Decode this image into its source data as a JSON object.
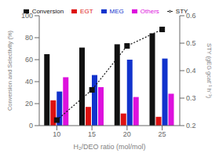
{
  "chart_data": {
    "type": "bar",
    "categories": [
      "10",
      "15",
      "20",
      "25"
    ],
    "xlabel": "H₂/DEO ratio (mol/mol)",
    "ylabel": "Conversion and Selectivity (%)",
    "y2label": "STY (gEG gcat⁻¹ h⁻¹)",
    "ylim": [
      0,
      100
    ],
    "yticks": [
      0,
      20,
      40,
      60,
      80,
      100
    ],
    "y2lim": [
      0.2,
      0.6
    ],
    "y2ticks": [
      0.2,
      0.3,
      0.4,
      0.5,
      0.6
    ],
    "legend": "top",
    "grid": false,
    "series": [
      {
        "name": "Conversion",
        "type": "bar",
        "color": "#111111",
        "values": [
          65,
          71,
          74,
          84
        ]
      },
      {
        "name": "EGT",
        "type": "bar",
        "color": "#dd1111",
        "values": [
          23,
          17,
          11,
          8
        ]
      },
      {
        "name": "MEG",
        "type": "bar",
        "color": "#1133cc",
        "values": [
          31,
          46,
          60,
          61
        ]
      },
      {
        "name": "Others",
        "type": "bar",
        "color": "#dd11dd",
        "values": [
          44,
          35,
          26,
          29
        ]
      },
      {
        "name": "STY",
        "type": "line",
        "axis": "y2",
        "color": "#111111",
        "marker": "square",
        "line_style": "dotted",
        "values": [
          0.22,
          0.33,
          0.49,
          0.55
        ]
      }
    ]
  }
}
